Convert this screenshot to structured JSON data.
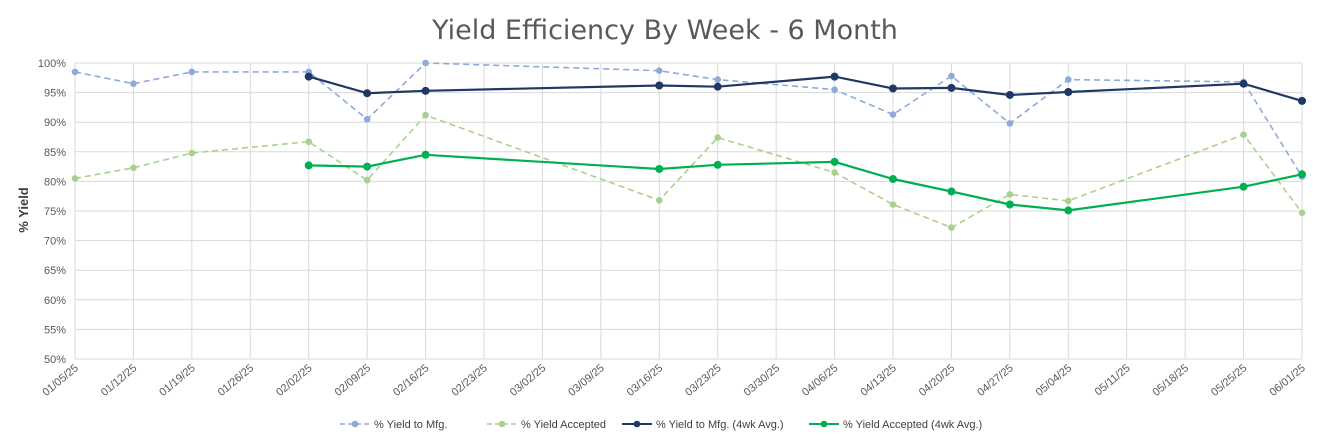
{
  "chart_data": {
    "type": "line",
    "title": "Yield Efficiency By Week - 6 Month",
    "xlabel": "",
    "ylabel": "% Yield",
    "ylim": [
      50,
      100
    ],
    "yticks": [
      "50%",
      "55%",
      "60%",
      "65%",
      "70%",
      "75%",
      "80%",
      "85%",
      "90%",
      "95%",
      "100%"
    ],
    "categories": [
      "01/05/25",
      "01/12/25",
      "01/19/25",
      "01/26/25",
      "02/02/25",
      "02/09/25",
      "02/16/25",
      "02/23/25",
      "03/02/25",
      "03/09/25",
      "03/16/25",
      "03/23/25",
      "03/30/25",
      "04/06/25",
      "04/13/25",
      "04/20/25",
      "04/27/25",
      "05/04/25",
      "05/11/25",
      "05/18/25",
      "05/25/25",
      "06/01/25"
    ],
    "grid": true,
    "legend_position": "bottom",
    "series": [
      {
        "name": "% Yield to Mfg.",
        "color": "#8eaadb",
        "dashed": true,
        "values": [
          98.5,
          96.5,
          98.5,
          null,
          98.5,
          90.5,
          100,
          null,
          null,
          null,
          98.7,
          97.2,
          null,
          95.5,
          91.3,
          97.8,
          89.8,
          97.2,
          null,
          null,
          96.8,
          80.8
        ]
      },
      {
        "name": "% Yield Accepted",
        "color": "#a9d18e",
        "dashed": true,
        "values": [
          80.5,
          82.3,
          84.8,
          null,
          86.7,
          80.2,
          91.2,
          null,
          null,
          null,
          76.8,
          87.4,
          null,
          81.5,
          76.1,
          72.2,
          77.8,
          76.7,
          null,
          null,
          87.9,
          74.7
        ]
      },
      {
        "name": "% Yield to Mfg. (4wk Avg.)",
        "color": "#1f3864",
        "dashed": false,
        "values": [
          null,
          null,
          null,
          null,
          97.7,
          94.9,
          95.3,
          null,
          null,
          null,
          96.2,
          96.0,
          null,
          97.7,
          95.7,
          95.8,
          94.6,
          95.1,
          null,
          null,
          96.5,
          93.6
        ]
      },
      {
        "name": "% Yield Accepted (4wk Avg.)",
        "color": "#00b050",
        "dashed": false,
        "values": [
          null,
          null,
          null,
          null,
          82.7,
          82.5,
          84.5,
          null,
          null,
          null,
          82.1,
          82.8,
          null,
          83.3,
          80.4,
          78.3,
          76.1,
          75.1,
          null,
          null,
          79.1,
          81.2
        ]
      }
    ]
  }
}
